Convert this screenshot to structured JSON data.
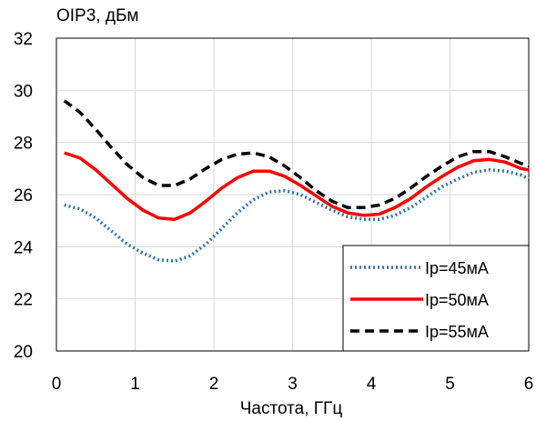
{
  "chart_data": {
    "type": "line",
    "title": "",
    "ylabel": "OIP3, дБм",
    "xlabel": "Частота, ГГц",
    "xlim": [
      0,
      6
    ],
    "ylim": [
      20,
      32
    ],
    "xticks": [
      "0",
      "1",
      "2",
      "3",
      "4",
      "5",
      "6"
    ],
    "yticks": [
      "20",
      "22",
      "24",
      "26",
      "28",
      "30",
      "32"
    ],
    "grid": true,
    "legend_position": "bottom-right",
    "series": [
      {
        "name": "Ip=45мА",
        "color": "#2e75b6",
        "style": "dotted",
        "x": [
          0.1,
          0.3,
          0.5,
          0.7,
          0.9,
          1.1,
          1.3,
          1.5,
          1.7,
          1.9,
          2.1,
          2.3,
          2.5,
          2.7,
          2.9,
          3.1,
          3.3,
          3.5,
          3.7,
          3.9,
          4.1,
          4.3,
          4.5,
          4.7,
          4.9,
          5.1,
          5.3,
          5.5,
          5.7,
          5.9,
          6.0
        ],
        "y": [
          25.6,
          25.45,
          25.1,
          24.6,
          24.1,
          23.75,
          23.5,
          23.45,
          23.65,
          24.1,
          24.7,
          25.3,
          25.8,
          26.1,
          26.15,
          26.0,
          25.7,
          25.4,
          25.15,
          25.05,
          25.05,
          25.2,
          25.5,
          25.9,
          26.3,
          26.6,
          26.85,
          26.95,
          26.9,
          26.75,
          26.6
        ]
      },
      {
        "name": "Ip=50мА",
        "color": "#ff0000",
        "style": "solid",
        "x": [
          0.1,
          0.3,
          0.5,
          0.7,
          0.9,
          1.1,
          1.3,
          1.5,
          1.7,
          1.9,
          2.1,
          2.3,
          2.5,
          2.7,
          2.9,
          3.1,
          3.3,
          3.5,
          3.7,
          3.9,
          4.1,
          4.3,
          4.5,
          4.7,
          4.9,
          5.1,
          5.3,
          5.5,
          5.7,
          5.9,
          6.0
        ],
        "y": [
          27.6,
          27.4,
          26.95,
          26.4,
          25.85,
          25.4,
          25.1,
          25.05,
          25.3,
          25.75,
          26.25,
          26.65,
          26.9,
          26.9,
          26.7,
          26.35,
          25.95,
          25.55,
          25.3,
          25.2,
          25.25,
          25.5,
          25.85,
          26.3,
          26.7,
          27.05,
          27.3,
          27.35,
          27.25,
          27.0,
          26.95
        ]
      },
      {
        "name": "Ip=55мА",
        "color": "#000000",
        "style": "dashed",
        "x": [
          0.1,
          0.3,
          0.5,
          0.7,
          0.9,
          1.1,
          1.3,
          1.5,
          1.7,
          1.9,
          2.1,
          2.3,
          2.5,
          2.7,
          2.9,
          3.1,
          3.3,
          3.5,
          3.7,
          3.9,
          4.1,
          4.3,
          4.5,
          4.7,
          4.9,
          5.1,
          5.3,
          5.5,
          5.7,
          5.9,
          6.0
        ],
        "y": [
          29.6,
          29.15,
          28.5,
          27.8,
          27.15,
          26.65,
          26.35,
          26.35,
          26.6,
          27.0,
          27.35,
          27.55,
          27.6,
          27.45,
          27.1,
          26.65,
          26.15,
          25.75,
          25.5,
          25.5,
          25.6,
          25.85,
          26.25,
          26.7,
          27.1,
          27.45,
          27.65,
          27.65,
          27.45,
          27.2,
          27.1
        ]
      }
    ]
  }
}
